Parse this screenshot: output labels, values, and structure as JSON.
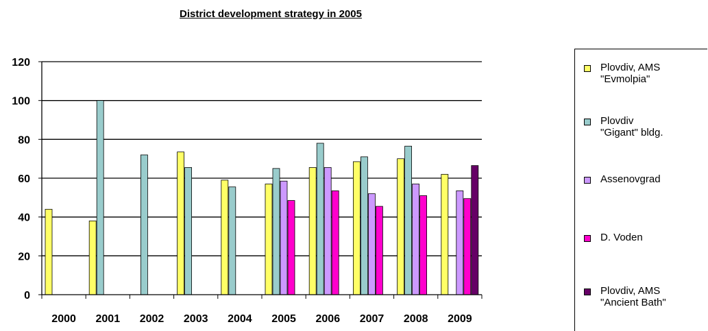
{
  "chart_data": {
    "type": "bar",
    "title": "District development strategy in 2005",
    "xlabel": "",
    "ylabel": "",
    "ylim": [
      0,
      120
    ],
    "yticks": [
      0,
      20,
      40,
      60,
      80,
      100,
      120
    ],
    "grid": true,
    "legend_position": "right",
    "categories": [
      "2000",
      "2001",
      "2002",
      "2003",
      "2004",
      "2005",
      "2006",
      "2007",
      "2008",
      "2009"
    ],
    "series": [
      {
        "name": "Plovdiv, AMS\n\"Evmolpia\"",
        "color": "#ffff66",
        "values": [
          44,
          38,
          null,
          73.5,
          59,
          57,
          65.5,
          68.5,
          70,
          62
        ]
      },
      {
        "name": "Plovdiv\n\"Gigant\" bldg.",
        "color": "#99cccc",
        "values": [
          null,
          100,
          72,
          65.5,
          55.5,
          65,
          78,
          71,
          76.5,
          null
        ]
      },
      {
        "name": "Assenovgrad",
        "color": "#cc99ff",
        "values": [
          null,
          null,
          null,
          null,
          null,
          58.5,
          65.5,
          52,
          57,
          53.5
        ]
      },
      {
        "name": "D. Voden",
        "color": "#ff00cc",
        "values": [
          null,
          null,
          null,
          null,
          null,
          48.5,
          53.5,
          45.5,
          51,
          49.5
        ]
      },
      {
        "name": "Plovdiv, AMS\n\"Ancient Bath\"",
        "color": "#660066",
        "values": [
          null,
          null,
          null,
          null,
          null,
          null,
          null,
          null,
          null,
          66.5
        ]
      }
    ]
  }
}
